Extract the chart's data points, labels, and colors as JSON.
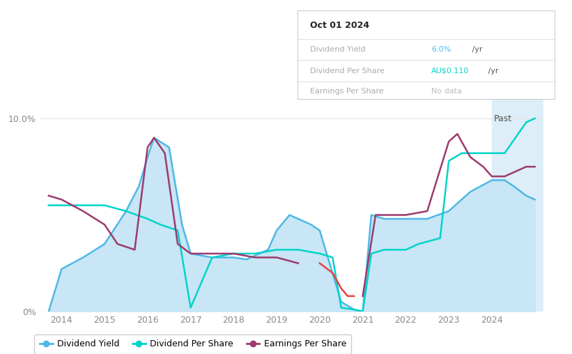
{
  "background_color": "#ffffff",
  "fill_color": "#c8e6f5",
  "past_fill_color": "#daeef8",
  "blue_color": "#4db8e8",
  "cyan_color": "#00d4c8",
  "purple_color": "#9b3a6e",
  "red_color": "#e84040",
  "grid_color": "#e0e0e0",
  "past_start_x": 2024.0,
  "xlim": [
    2013.5,
    2025.2
  ],
  "ylim": [
    0,
    11.0
  ],
  "xticks": [
    2014,
    2015,
    2016,
    2017,
    2018,
    2019,
    2020,
    2021,
    2022,
    2023,
    2024
  ],
  "yticks_labels": [
    "0%",
    "10.0%"
  ],
  "yticks_values": [
    0,
    10.0
  ],
  "past_label": "Past",
  "tooltip_date": "Oct 01 2024",
  "legend_items": [
    "Dividend Yield",
    "Dividend Per Share",
    "Earnings Per Share"
  ],
  "dividend_yield_x": [
    2013.7,
    2014.0,
    2014.5,
    2015.0,
    2015.5,
    2015.8,
    2016.0,
    2016.15,
    2016.5,
    2016.8,
    2017.0,
    2017.5,
    2018.0,
    2018.3,
    2018.5,
    2018.8,
    2019.0,
    2019.3,
    2019.5,
    2019.8,
    2020.0,
    2020.5,
    2020.8,
    2021.0,
    2021.2,
    2021.5,
    2022.0,
    2022.5,
    2023.0,
    2023.5,
    2024.0,
    2024.3,
    2024.5,
    2024.8,
    2025.0
  ],
  "dividend_yield_y": [
    0.0,
    2.2,
    2.8,
    3.5,
    5.2,
    6.5,
    8.0,
    9.0,
    8.5,
    4.5,
    3.0,
    2.8,
    2.8,
    2.7,
    2.9,
    3.2,
    4.2,
    5.0,
    4.8,
    4.5,
    4.2,
    0.5,
    0.1,
    0.0,
    5.0,
    4.8,
    4.8,
    4.8,
    5.2,
    6.2,
    6.8,
    6.8,
    6.5,
    6.0,
    5.8
  ],
  "dividend_per_share_x": [
    2013.7,
    2014.0,
    2015.0,
    2015.5,
    2016.0,
    2016.3,
    2016.7,
    2017.0,
    2017.5,
    2018.0,
    2018.5,
    2019.0,
    2019.5,
    2020.0,
    2020.3,
    2020.5,
    2020.8,
    2021.0,
    2021.2,
    2021.5,
    2022.0,
    2022.3,
    2022.8,
    2023.0,
    2023.3,
    2023.5,
    2024.0,
    2024.3,
    2024.8,
    2025.0
  ],
  "dividend_per_share_y": [
    5.5,
    5.5,
    5.5,
    5.2,
    4.8,
    4.5,
    4.2,
    0.2,
    2.8,
    3.0,
    3.0,
    3.2,
    3.2,
    3.0,
    2.8,
    0.2,
    0.1,
    0.0,
    3.0,
    3.2,
    3.2,
    3.5,
    3.8,
    7.8,
    8.2,
    8.2,
    8.2,
    8.2,
    9.8,
    10.0
  ],
  "earnings_per_share_x": [
    2013.7,
    2014.0,
    2014.5,
    2015.0,
    2015.3,
    2015.7,
    2016.0,
    2016.15,
    2016.4,
    2016.7,
    2017.0,
    2017.5,
    2018.0,
    2018.5,
    2019.0,
    2019.5,
    2020.0,
    2020.3,
    2020.5,
    2020.65,
    2020.8,
    2021.0,
    2021.3,
    2021.5,
    2022.0,
    2022.5,
    2023.0,
    2023.2,
    2023.5,
    2023.8,
    2024.0,
    2024.3,
    2024.5,
    2024.8,
    2025.0
  ],
  "earnings_per_share_y": [
    6.0,
    5.8,
    5.2,
    4.5,
    3.5,
    3.2,
    8.5,
    9.0,
    8.2,
    3.5,
    3.0,
    3.0,
    3.0,
    2.8,
    2.8,
    2.5,
    2.5,
    2.0,
    1.2,
    0.8,
    0.8,
    0.8,
    5.0,
    5.0,
    5.0,
    5.2,
    8.8,
    9.2,
    8.0,
    7.5,
    7.0,
    7.0,
    7.2,
    7.5,
    7.5
  ],
  "earnings_red_x_start": 2019.9,
  "earnings_red_x_end": 2020.85
}
